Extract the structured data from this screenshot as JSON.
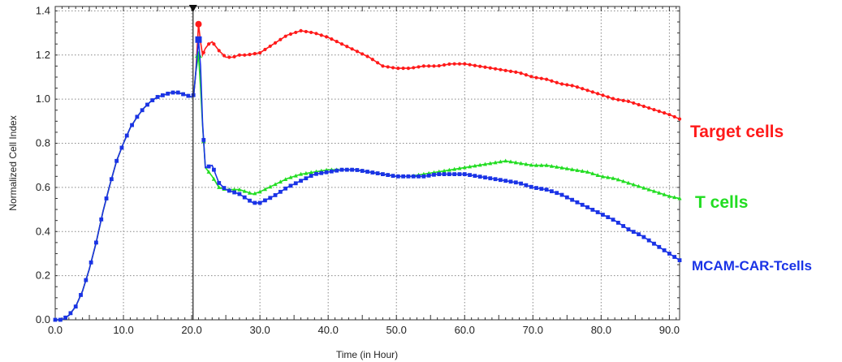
{
  "chart_data": {
    "type": "line",
    "title": "",
    "xlabel": "Time (in Hour)",
    "ylabel": "Normalized Cell Index",
    "xlim": [
      0,
      91.5
    ],
    "ylim": [
      0,
      1.42
    ],
    "grid": true,
    "legend_placement": "right",
    "xticks": [
      0,
      10,
      20,
      30,
      40,
      50,
      60,
      70,
      80,
      90
    ],
    "xtick_labels": [
      "0.0",
      "10.0",
      "20.0",
      "30.0",
      "40.0",
      "50.0",
      "60.0",
      "70.0",
      "80.0",
      "90.0"
    ],
    "yticks": [
      0,
      0.2,
      0.4,
      0.6,
      0.8,
      1.0,
      1.2,
      1.4
    ],
    "ytick_labels": [
      "0.0",
      "0.2",
      "0.4",
      "0.6",
      "0.8",
      "1.0",
      "1.2",
      "1.4"
    ],
    "annotation": {
      "type": "vertical-line",
      "x": 20.2,
      "marker": "down-triangle"
    },
    "series": [
      {
        "name": "Target cells",
        "color": "#ff1a1a",
        "points": [
          [
            0,
            0
          ],
          [
            1,
            0
          ],
          [
            2,
            0.02
          ],
          [
            3,
            0.06
          ],
          [
            4,
            0.13
          ],
          [
            5,
            0.23
          ],
          [
            6,
            0.35
          ],
          [
            7,
            0.49
          ],
          [
            8,
            0.61
          ],
          [
            9,
            0.72
          ],
          [
            10,
            0.8
          ],
          [
            11,
            0.87
          ],
          [
            12,
            0.92
          ],
          [
            13,
            0.96
          ],
          [
            14,
            0.99
          ],
          [
            15,
            1.01
          ],
          [
            16,
            1.02
          ],
          [
            17,
            1.03
          ],
          [
            18,
            1.03
          ],
          [
            19,
            1.02
          ],
          [
            20,
            1.01
          ],
          [
            20.3,
            1.02
          ],
          [
            20.6,
            1.12
          ],
          [
            21,
            1.34
          ],
          [
            21.3,
            1.26
          ],
          [
            21.6,
            1.2
          ],
          [
            22,
            1.23
          ],
          [
            22.5,
            1.25
          ],
          [
            23,
            1.26
          ],
          [
            24,
            1.22
          ],
          [
            25,
            1.19
          ],
          [
            26,
            1.19
          ],
          [
            27,
            1.2
          ],
          [
            28,
            1.2
          ],
          [
            30,
            1.21
          ],
          [
            32,
            1.25
          ],
          [
            34,
            1.29
          ],
          [
            36,
            1.31
          ],
          [
            38,
            1.3
          ],
          [
            40,
            1.28
          ],
          [
            42,
            1.25
          ],
          [
            44,
            1.22
          ],
          [
            46,
            1.19
          ],
          [
            48,
            1.15
          ],
          [
            50,
            1.14
          ],
          [
            52,
            1.14
          ],
          [
            54,
            1.15
          ],
          [
            56,
            1.15
          ],
          [
            58,
            1.16
          ],
          [
            60,
            1.16
          ],
          [
            62,
            1.15
          ],
          [
            64,
            1.14
          ],
          [
            66,
            1.13
          ],
          [
            68,
            1.12
          ],
          [
            70,
            1.1
          ],
          [
            72,
            1.09
          ],
          [
            74,
            1.07
          ],
          [
            76,
            1.06
          ],
          [
            78,
            1.04
          ],
          [
            80,
            1.02
          ],
          [
            82,
            1.0
          ],
          [
            84,
            0.99
          ],
          [
            86,
            0.97
          ],
          [
            88,
            0.95
          ],
          [
            90,
            0.93
          ],
          [
            91.5,
            0.91
          ]
        ]
      },
      {
        "name": "T cells",
        "color": "#22dd22",
        "points": [
          [
            0,
            0
          ],
          [
            1,
            0
          ],
          [
            2,
            0.02
          ],
          [
            3,
            0.06
          ],
          [
            4,
            0.13
          ],
          [
            5,
            0.23
          ],
          [
            6,
            0.35
          ],
          [
            7,
            0.49
          ],
          [
            8,
            0.61
          ],
          [
            9,
            0.72
          ],
          [
            10,
            0.8
          ],
          [
            11,
            0.87
          ],
          [
            12,
            0.92
          ],
          [
            13,
            0.96
          ],
          [
            14,
            0.99
          ],
          [
            15,
            1.01
          ],
          [
            16,
            1.02
          ],
          [
            17,
            1.03
          ],
          [
            18,
            1.03
          ],
          [
            19,
            1.02
          ],
          [
            20,
            1.01
          ],
          [
            20.3,
            1.02
          ],
          [
            20.6,
            1.12
          ],
          [
            21,
            1.2
          ],
          [
            21.3,
            1.05
          ],
          [
            21.6,
            0.88
          ],
          [
            22,
            0.69
          ],
          [
            23,
            0.65
          ],
          [
            24,
            0.6
          ],
          [
            25,
            0.59
          ],
          [
            26,
            0.59
          ],
          [
            27,
            0.59
          ],
          [
            28,
            0.58
          ],
          [
            29,
            0.57
          ],
          [
            30,
            0.58
          ],
          [
            32,
            0.61
          ],
          [
            34,
            0.64
          ],
          [
            36,
            0.66
          ],
          [
            38,
            0.67
          ],
          [
            40,
            0.68
          ],
          [
            42,
            0.68
          ],
          [
            44,
            0.68
          ],
          [
            46,
            0.67
          ],
          [
            48,
            0.66
          ],
          [
            50,
            0.65
          ],
          [
            52,
            0.65
          ],
          [
            54,
            0.66
          ],
          [
            56,
            0.67
          ],
          [
            58,
            0.68
          ],
          [
            60,
            0.69
          ],
          [
            62,
            0.7
          ],
          [
            64,
            0.71
          ],
          [
            66,
            0.72
          ],
          [
            68,
            0.71
          ],
          [
            70,
            0.7
          ],
          [
            72,
            0.7
          ],
          [
            74,
            0.69
          ],
          [
            76,
            0.68
          ],
          [
            78,
            0.67
          ],
          [
            80,
            0.65
          ],
          [
            82,
            0.64
          ],
          [
            84,
            0.62
          ],
          [
            86,
            0.6
          ],
          [
            88,
            0.58
          ],
          [
            90,
            0.56
          ],
          [
            91.5,
            0.55
          ]
        ]
      },
      {
        "name": "MCAM-CAR-Tcells",
        "color": "#1a33e6",
        "points": [
          [
            0,
            0
          ],
          [
            1,
            0
          ],
          [
            2,
            0.02
          ],
          [
            3,
            0.06
          ],
          [
            4,
            0.13
          ],
          [
            5,
            0.23
          ],
          [
            6,
            0.35
          ],
          [
            7,
            0.49
          ],
          [
            8,
            0.61
          ],
          [
            9,
            0.72
          ],
          [
            10,
            0.8
          ],
          [
            11,
            0.87
          ],
          [
            12,
            0.92
          ],
          [
            13,
            0.96
          ],
          [
            14,
            0.99
          ],
          [
            15,
            1.01
          ],
          [
            16,
            1.02
          ],
          [
            17,
            1.03
          ],
          [
            18,
            1.03
          ],
          [
            19,
            1.02
          ],
          [
            20,
            1.01
          ],
          [
            20.3,
            1.02
          ],
          [
            20.6,
            1.12
          ],
          [
            21,
            1.27
          ],
          [
            21.3,
            1.15
          ],
          [
            21.6,
            0.89
          ],
          [
            22,
            0.69
          ],
          [
            23,
            0.7
          ],
          [
            24,
            0.62
          ],
          [
            25,
            0.59
          ],
          [
            26,
            0.58
          ],
          [
            27,
            0.57
          ],
          [
            28,
            0.55
          ],
          [
            29,
            0.53
          ],
          [
            30,
            0.53
          ],
          [
            32,
            0.56
          ],
          [
            34,
            0.6
          ],
          [
            36,
            0.63
          ],
          [
            38,
            0.66
          ],
          [
            40,
            0.67
          ],
          [
            42,
            0.68
          ],
          [
            44,
            0.68
          ],
          [
            46,
            0.67
          ],
          [
            48,
            0.66
          ],
          [
            50,
            0.65
          ],
          [
            52,
            0.65
          ],
          [
            54,
            0.65
          ],
          [
            56,
            0.66
          ],
          [
            58,
            0.66
          ],
          [
            60,
            0.66
          ],
          [
            62,
            0.65
          ],
          [
            64,
            0.64
          ],
          [
            66,
            0.63
          ],
          [
            68,
            0.62
          ],
          [
            70,
            0.6
          ],
          [
            72,
            0.59
          ],
          [
            74,
            0.57
          ],
          [
            76,
            0.54
          ],
          [
            78,
            0.51
          ],
          [
            80,
            0.48
          ],
          [
            82,
            0.45
          ],
          [
            84,
            0.41
          ],
          [
            86,
            0.38
          ],
          [
            88,
            0.34
          ],
          [
            90,
            0.3
          ],
          [
            91.5,
            0.27
          ]
        ]
      }
    ]
  }
}
